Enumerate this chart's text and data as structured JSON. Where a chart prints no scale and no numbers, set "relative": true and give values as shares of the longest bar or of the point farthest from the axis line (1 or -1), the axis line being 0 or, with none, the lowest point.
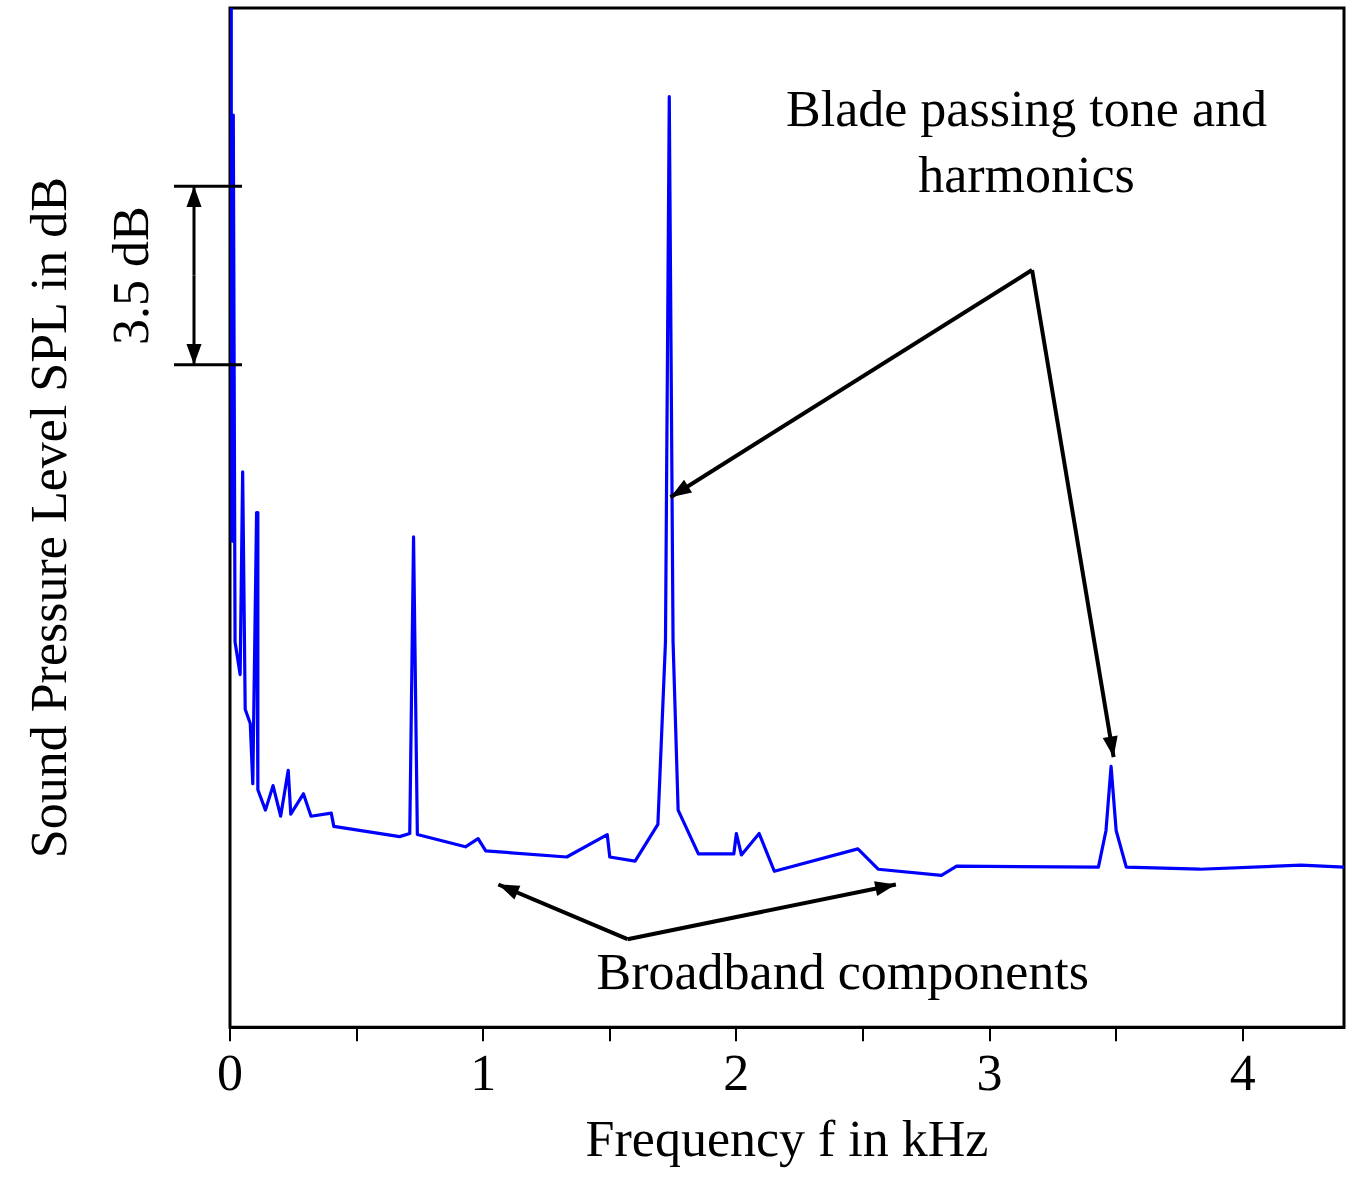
{
  "chart_data": {
    "type": "line",
    "relative": true,
    "xlabel": "Frequency f in kHz",
    "ylabel": "Sound Pressure Level SPL in dB",
    "annotations": [
      "Blade passing tone and harmonics",
      "Broadband components",
      "3.5 dB"
    ],
    "x": [
      0,
      0.005,
      0.008,
      0.013,
      0.02,
      0.04,
      0.05,
      0.06,
      0.08,
      0.09,
      0.105,
      0.11,
      0.14,
      0.17,
      0.2,
      0.23,
      0.24,
      0.29,
      0.32,
      0.4,
      0.41,
      0.67,
      0.71,
      0.725,
      0.74,
      0.93,
      0.98,
      1.01,
      1.33,
      1.49,
      1.5,
      1.6,
      1.69,
      1.72,
      1.735,
      1.75,
      1.77,
      1.85,
      1.99,
      2.0,
      2.02,
      2.09,
      2.15,
      2.48,
      2.56,
      2.81,
      2.87,
      3.43,
      3.46,
      3.48,
      3.5,
      3.54,
      3.83,
      4.23,
      4.4
    ],
    "values": [
      1.0,
      0.895,
      0.477,
      0.895,
      0.378,
      0.346,
      0.545,
      0.312,
      0.298,
      0.239,
      0.505,
      0.233,
      0.213,
      0.237,
      0.207,
      0.252,
      0.209,
      0.229,
      0.207,
      0.21,
      0.197,
      0.187,
      0.19,
      0.481,
      0.189,
      0.177,
      0.185,
      0.173,
      0.167,
      0.189,
      0.167,
      0.163,
      0.199,
      0.378,
      0.913,
      0.378,
      0.213,
      0.17,
      0.17,
      0.19,
      0.169,
      0.19,
      0.153,
      0.175,
      0.155,
      0.149,
      0.158,
      0.157,
      0.193,
      0.256,
      0.193,
      0.157,
      0.155,
      0.159,
      0.157
    ],
    "color": "#0000ff",
    "marker": "none",
    "line_style": "solid",
    "grid": false,
    "legend": false,
    "xlim": [
      0,
      4.4
    ],
    "xticks": [
      0,
      {
        "value": 0.5,
        "label": null
      },
      1,
      {
        "value": 1.5,
        "label": null
      },
      2,
      {
        "value": 2.5,
        "label": null
      },
      3,
      {
        "value": 3.5,
        "label": null
      },
      4
    ]
  }
}
